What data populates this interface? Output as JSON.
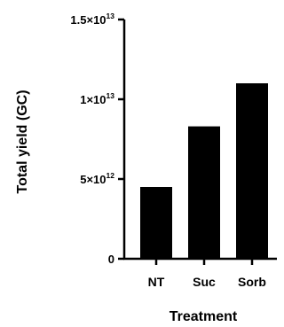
{
  "chart_data": {
    "type": "bar",
    "categories": [
      "NT",
      "Suc",
      "Sorb"
    ],
    "values": [
      4500000000000.0,
      8300000000000.0,
      11000000000000.0
    ],
    "title": "",
    "xlabel": "Treatment",
    "ylabel": "Total yield (GC)",
    "ylim": [
      0,
      15000000000000.0
    ],
    "yticks": [
      {
        "value": 0,
        "mantissa": "0",
        "exponent": ""
      },
      {
        "value": 5000000000000.0,
        "mantissa": "5×10",
        "exponent": "12"
      },
      {
        "value": 10000000000000.0,
        "mantissa": "1×10",
        "exponent": "13"
      },
      {
        "value": 15000000000000.0,
        "mantissa": "1.5×10",
        "exponent": "13"
      }
    ],
    "bar_color": "#000000",
    "grid": false,
    "legend": "none"
  }
}
